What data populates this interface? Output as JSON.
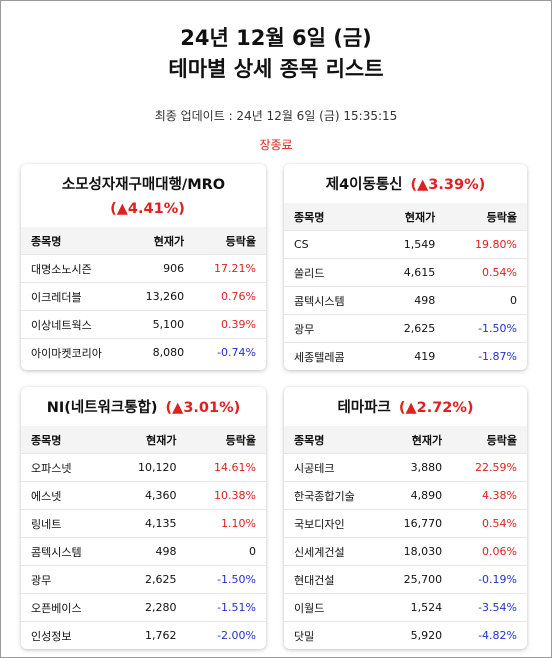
{
  "header": {
    "title": [
      "24년 12월 6일 (금)",
      "테마별 상세 종목 리스트"
    ],
    "update": "최종 업데이트 : 24년 12월 6일 (금) 15:35:15",
    "status": "장종료"
  },
  "cards": [
    {
      "name": "소모성자재구매대행/MRO",
      "change": "(▲4.41%)",
      "columns": [
        "종목명",
        "현재가",
        "등락율"
      ],
      "rows": [
        [
          "대명소노시즌",
          "906",
          "17.21%"
        ],
        [
          "이크레더블",
          "13,260",
          "0.76%"
        ],
        [
          "이상네트웍스",
          "5,100",
          "0.39%"
        ],
        [
          "아이마켓코리아",
          "8,080",
          "-0.74%"
        ]
      ]
    },
    {
      "name": "제4이동통신",
      "change": "(▲3.39%)",
      "columns": [
        "종목명",
        "현재가",
        "등락율"
      ],
      "rows": [
        [
          "CS",
          "1,549",
          "19.80%"
        ],
        [
          "쏠리드",
          "4,615",
          "0.54%"
        ],
        [
          "콤텍시스템",
          "498",
          "0"
        ],
        [
          "광무",
          "2,625",
          "-1.50%"
        ],
        [
          "세종텔레콤",
          "419",
          "-1.87%"
        ]
      ]
    },
    {
      "name": "NI(네트워크통합)",
      "change": "(▲3.01%)",
      "columns": [
        "종목명",
        "현재가",
        "등락율"
      ],
      "rows": [
        [
          "오파스넷",
          "10,120",
          "14.61%"
        ],
        [
          "에스넷",
          "4,360",
          "10.38%"
        ],
        [
          "링네트",
          "4,135",
          "1.10%"
        ],
        [
          "콤텍시스템",
          "498",
          "0"
        ],
        [
          "광무",
          "2,625",
          "-1.50%"
        ],
        [
          "오픈베이스",
          "2,280",
          "-1.51%"
        ],
        [
          "인성정보",
          "1,762",
          "-2.00%"
        ]
      ]
    },
    {
      "name": "테마파크",
      "change": "(▲2.72%)",
      "columns": [
        "종목명",
        "현재가",
        "등락율"
      ],
      "rows": [
        [
          "시공테크",
          "3,880",
          "22.59%"
        ],
        [
          "한국종합기술",
          "4,890",
          "4.38%"
        ],
        [
          "국보디자인",
          "16,770",
          "0.54%"
        ],
        [
          "신세계건설",
          "18,030",
          "0.06%"
        ],
        [
          "현대건설",
          "25,700",
          "-0.19%"
        ],
        [
          "이월드",
          "1,524",
          "-3.54%"
        ],
        [
          "닷밀",
          "5,920",
          "-4.82%"
        ]
      ]
    }
  ]
}
